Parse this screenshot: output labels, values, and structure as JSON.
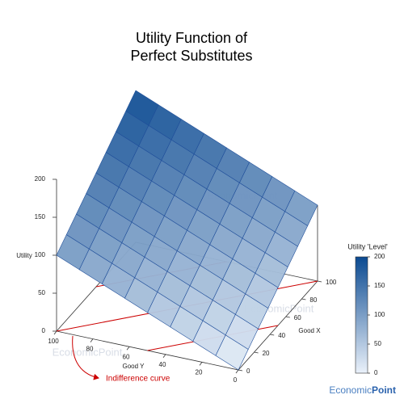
{
  "chart_data": {
    "type": "surface",
    "title": [
      "Utility Function of",
      "Perfect Substitutes"
    ],
    "x_label": "Good X",
    "y_label": "Good Y",
    "z_label": "Utility",
    "xlim": [
      0,
      100
    ],
    "xticks": [
      0,
      20,
      40,
      60,
      80,
      100
    ],
    "ylim": [
      0,
      100
    ],
    "yticks": [
      0,
      20,
      40,
      60,
      80,
      100
    ],
    "zlim": [
      0,
      200
    ],
    "zticks": [
      0,
      50,
      100,
      150,
      200
    ],
    "x": [
      0,
      12.5,
      25,
      37.5,
      50,
      62.5,
      75,
      87.5,
      100
    ],
    "y": [
      0,
      12.5,
      25,
      37.5,
      50,
      62.5,
      75,
      87.5,
      100
    ],
    "z": [
      [
        0,
        12.5,
        25,
        37.5,
        50,
        62.5,
        75,
        87.5,
        100
      ],
      [
        12.5,
        25,
        37.5,
        50,
        62.5,
        75,
        87.5,
        100,
        112.5
      ],
      [
        25,
        37.5,
        50,
        62.5,
        75,
        87.5,
        100,
        112.5,
        125
      ],
      [
        37.5,
        50,
        62.5,
        75,
        87.5,
        100,
        112.5,
        125,
        137.5
      ],
      [
        50,
        62.5,
        75,
        87.5,
        100,
        112.5,
        125,
        137.5,
        150
      ],
      [
        62.5,
        75,
        87.5,
        100,
        112.5,
        125,
        137.5,
        150,
        162.5
      ],
      [
        75,
        87.5,
        100,
        112.5,
        125,
        137.5,
        150,
        162.5,
        175
      ],
      [
        87.5,
        100,
        112.5,
        125,
        137.5,
        150,
        162.5,
        175,
        187.5
      ],
      [
        100,
        112.5,
        125,
        137.5,
        150,
        162.5,
        175,
        187.5,
        200
      ]
    ],
    "surface_colors": [
      "#eaf1fa",
      "#0b4a91"
    ],
    "indifference_levels": [
      50,
      100,
      150
    ],
    "indifference_color": "#cc0000",
    "annotation": "Indifference curve",
    "colorbar": {
      "label": "Utility 'Level'",
      "lim": [
        0,
        200
      ],
      "ticks": [
        0,
        50,
        100,
        150,
        200
      ]
    },
    "watermark": "EconomicPoint",
    "brand": [
      "Economic",
      "Point"
    ]
  }
}
